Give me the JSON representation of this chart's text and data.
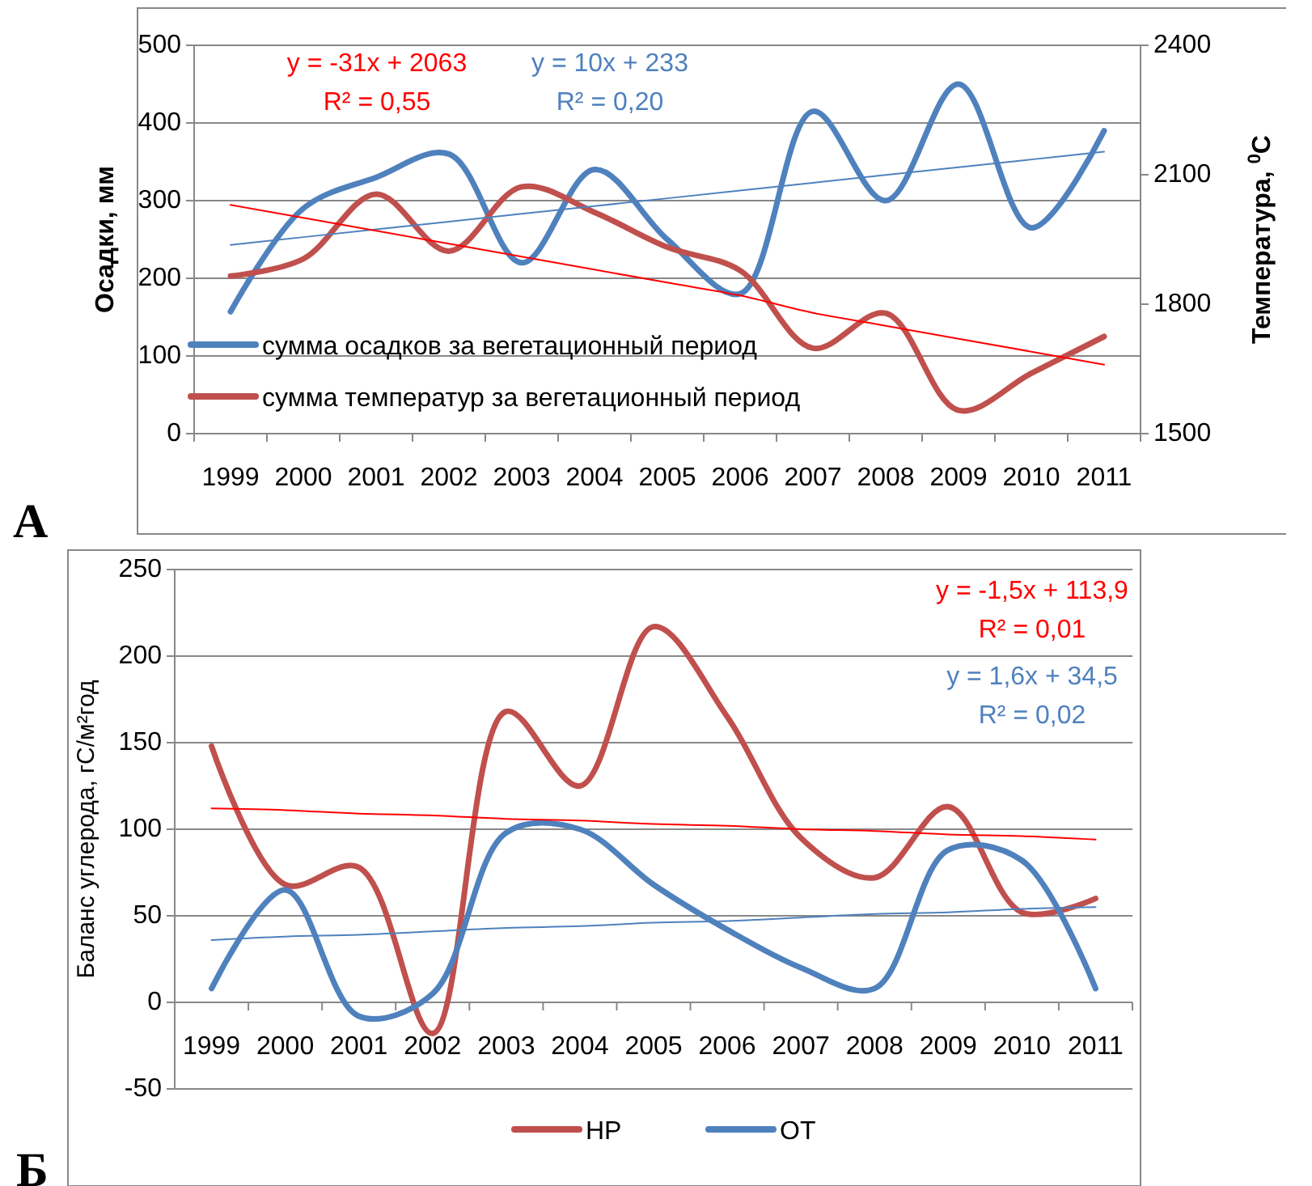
{
  "chart_data": [
    {
      "type": "line",
      "ylabel": "Осадки, мм",
      "y2label": "Температура, $^{0}$С",
      "categories": [
        "1999",
        "2000",
        "2001",
        "2002",
        "2003",
        "2004",
        "2005",
        "2006",
        "2007",
        "2008",
        "2009",
        "2010",
        "2011"
      ],
      "series": [
        {
          "name": "сумма осадков за вегетационный  период",
          "color": "#4f81bd",
          "values": [
            157,
            290,
            330,
            360,
            220,
            340,
            250,
            180,
            415,
            300,
            450,
            265,
            390
          ]
        },
        {
          "name": "сумма температур за вегетационный  период",
          "color": "#c0504d",
          "axis": "y2",
          "values": [
            1865,
            1905,
            2055,
            1923,
            2072,
            2013,
            1932,
            1878,
            1698,
            1779,
            1554,
            1640,
            1725
          ]
        },
        {
          "color": "#4f81bd",
          "values": [
            243,
            253,
            263,
            273,
            283,
            293,
            303,
            313,
            323,
            333,
            343,
            353,
            363
          ]
        },
        {
          "color": "#ff0000",
          "axis": "y2",
          "values": [
            2030,
            2000,
            1970,
            1940,
            1910,
            1880,
            1850,
            1820,
            1780,
            1750,
            1720,
            1690,
            1660
          ]
        }
      ],
      "ylim": [
        0,
        500
      ],
      "yticks": [
        0,
        100,
        200,
        300,
        400,
        500
      ],
      "y2lim": [
        1500,
        2400
      ],
      "y2ticks": [
        1500,
        1800,
        2100,
        2400
      ],
      "grid": "y",
      "legend": "left",
      "marker": "none",
      "line_style": "solid",
      "annotations": [
        "y = -31x + 2063",
        "R² = 0,55",
        "y = 10x + 233",
        "R² = 0,20",
        "А"
      ]
    },
    {
      "type": "line",
      "ylabel": "Баланс углерода, гС/м²год",
      "categories": [
        "1999",
        "2000",
        "2001",
        "2002",
        "2003",
        "2004",
        "2005",
        "2006",
        "2007",
        "2008",
        "2009",
        "2010",
        "2011"
      ],
      "series": [
        {
          "name": "НР",
          "color": "#c0504d",
          "values": [
            148,
            68,
            78,
            -18,
            168,
            125,
            217,
            165,
            95,
            72,
            113,
            52,
            60
          ]
        },
        {
          "name": "ОТ",
          "color": "#4f81bd",
          "values": [
            8,
            65,
            -8,
            5,
            98,
            100,
            68,
            42,
            20,
            8,
            88,
            82,
            8
          ]
        },
        {
          "color": "#ff0000",
          "values": [
            112,
            111,
            109,
            108,
            106,
            105,
            103,
            102,
            100,
            99,
            97,
            96,
            94
          ]
        },
        {
          "color": "#4f81bd",
          "values": [
            36,
            38,
            39,
            41,
            43,
            44,
            46,
            47,
            49,
            51,
            52,
            54,
            55
          ]
        }
      ],
      "ylim": [
        -50,
        250
      ],
      "yticks": [
        -50,
        0,
        50,
        100,
        150,
        200,
        250
      ],
      "grid": "y",
      "legend": "bottom",
      "marker": "none",
      "line_style": "solid",
      "annotations": [
        "y = -1,5x + 113,9",
        "R² = 0,01",
        "y = 1,6x + 34,5",
        "R² = 0,02",
        "Б"
      ]
    }
  ]
}
